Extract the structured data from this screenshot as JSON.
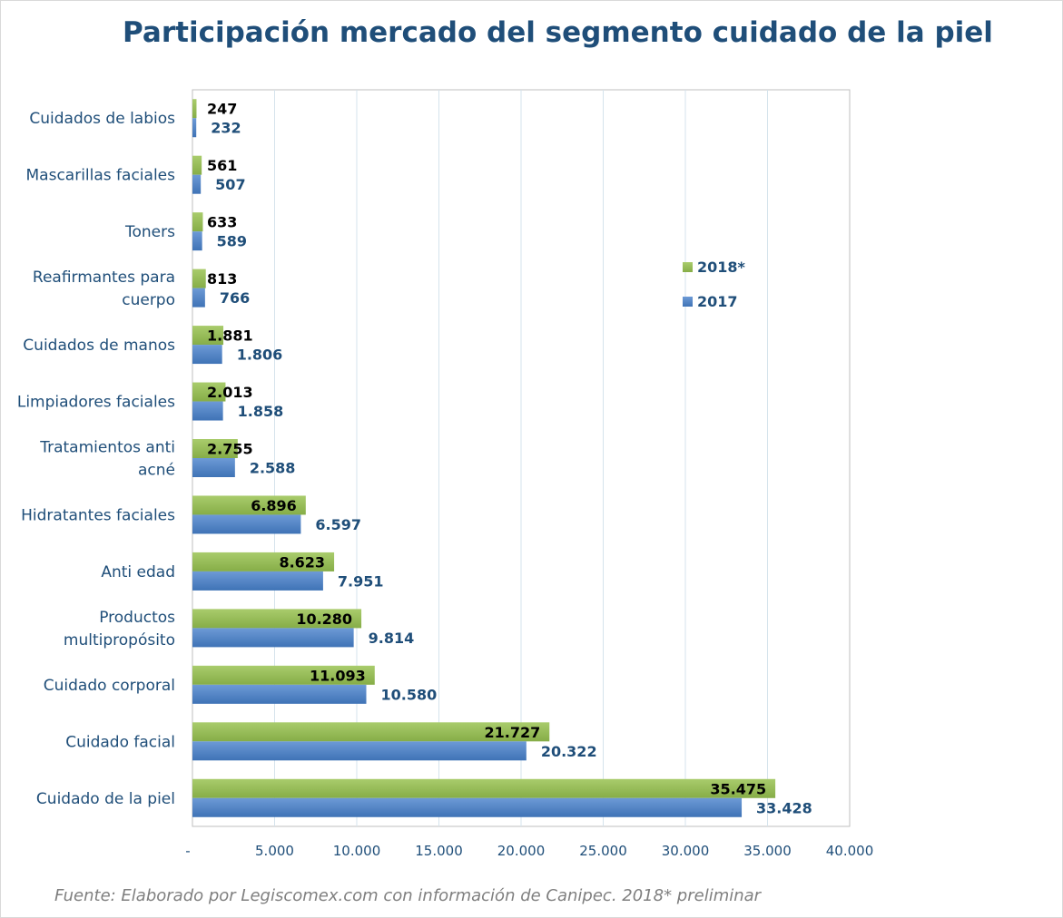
{
  "chart_data": {
    "type": "bar",
    "orientation": "horizontal",
    "title": "Participación mercado del segmento cuidado de la piel",
    "categories": [
      [
        "Cuidados de labios"
      ],
      [
        "Mascarillas faciales"
      ],
      [
        "Toners"
      ],
      [
        "Reafirmantes para",
        "cuerpo"
      ],
      [
        "Cuidados de manos"
      ],
      [
        "Limpiadores faciales"
      ],
      [
        "Tratamientos anti",
        "acné"
      ],
      [
        "Hidratantes faciales"
      ],
      [
        "Anti edad"
      ],
      [
        "Productos",
        "multipropósito"
      ],
      [
        "Cuidado corporal"
      ],
      [
        "Cuidado facial"
      ],
      [
        "Cuidado de la piel"
      ]
    ],
    "series": [
      {
        "name": "2018*",
        "color": "#8fb552",
        "values": [
          247,
          561,
          633,
          813,
          1881,
          2013,
          2755,
          6896,
          8623,
          10280,
          11093,
          21727,
          35475
        ],
        "labels": [
          "247",
          "561",
          "633",
          "813",
          "1.881",
          "2.013",
          "2.755",
          "6.896",
          "8.623",
          "10.280",
          "11.093",
          "21.727",
          "35.475"
        ]
      },
      {
        "name": "2017",
        "color": "#4a7ebf",
        "values": [
          232,
          507,
          589,
          766,
          1806,
          1858,
          2588,
          6597,
          7951,
          9814,
          10580,
          20322,
          33428
        ],
        "labels": [
          "232",
          "507",
          "589",
          "766",
          "1.806",
          "1.858",
          "2.588",
          "6.597",
          "7.951",
          "9.814",
          "10.580",
          "20.322",
          "33.428"
        ]
      }
    ],
    "xlim": [
      0,
      40000
    ],
    "x_ticks": [
      0,
      5000,
      10000,
      15000,
      20000,
      25000,
      30000,
      35000,
      40000
    ],
    "x_tick_labels": [
      "-",
      "5.000",
      "10.000",
      "15.000",
      "20.000",
      "25.000",
      "30.000",
      "35.000",
      "40.000"
    ],
    "grid": true,
    "legend_position": "right",
    "xlabel": "",
    "ylabel": ""
  },
  "source_note": "Fuente: Elaborado por Legiscomex.com con información de Canipec. 2018* preliminar"
}
